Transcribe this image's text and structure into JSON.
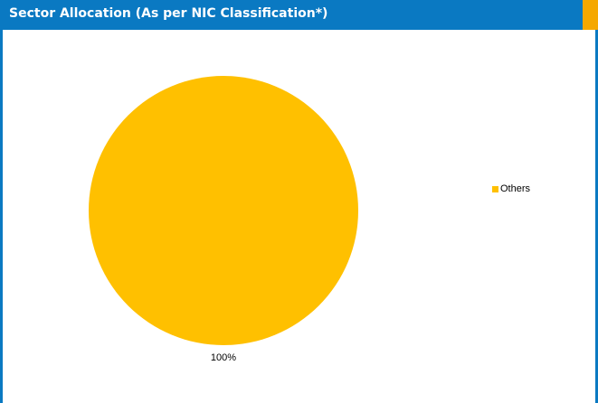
{
  "header": {
    "title": "Sector Allocation (As per NIC Classification*)"
  },
  "colors": {
    "header_bg": "#0a79c2",
    "header_accent": "#f5a800",
    "slice_others": "#ffc000"
  },
  "chart_data": {
    "type": "pie",
    "title": "",
    "categories": [
      "Others"
    ],
    "values": [
      100
    ],
    "data_labels": [
      "100%"
    ],
    "legend_position": "right"
  }
}
